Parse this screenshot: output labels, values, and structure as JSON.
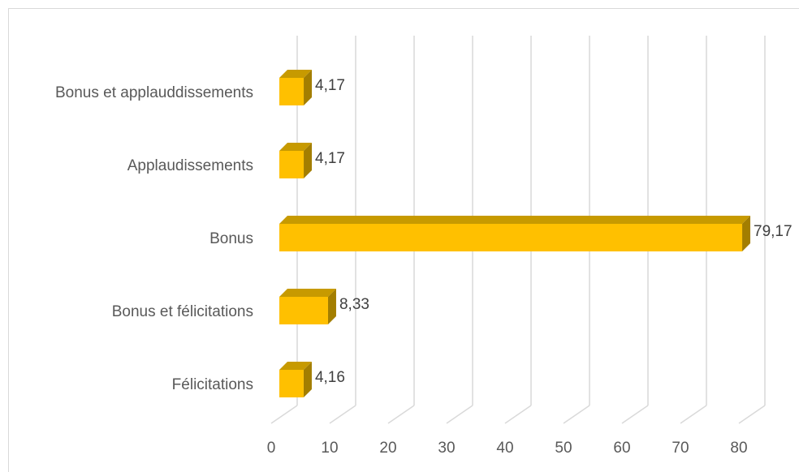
{
  "chart_data": {
    "type": "bar",
    "orientation": "horizontal",
    "style": "3d",
    "title": "",
    "xlabel": "",
    "ylabel": "",
    "categories": [
      "Bonus et applauddissements",
      "Applaudissements",
      "Bonus",
      "Bonus et félicitations",
      "Félicitations"
    ],
    "values": [
      4.17,
      4.17,
      79.17,
      8.33,
      4.16
    ],
    "value_labels": [
      "4,17",
      "4,17",
      "79,17",
      "8,33",
      "4,16"
    ],
    "xlim": [
      0,
      80
    ],
    "x_ticks": [
      "0",
      "10",
      "20",
      "30",
      "40",
      "50",
      "60",
      "70",
      "80"
    ],
    "grid": "vertical",
    "legend": "none",
    "colors": {
      "bar_front": "#FFC000",
      "bar_top": "#C79A00",
      "bar_side": "#A37E00",
      "gridline": "#d9d9d9",
      "text": "#595959"
    }
  }
}
